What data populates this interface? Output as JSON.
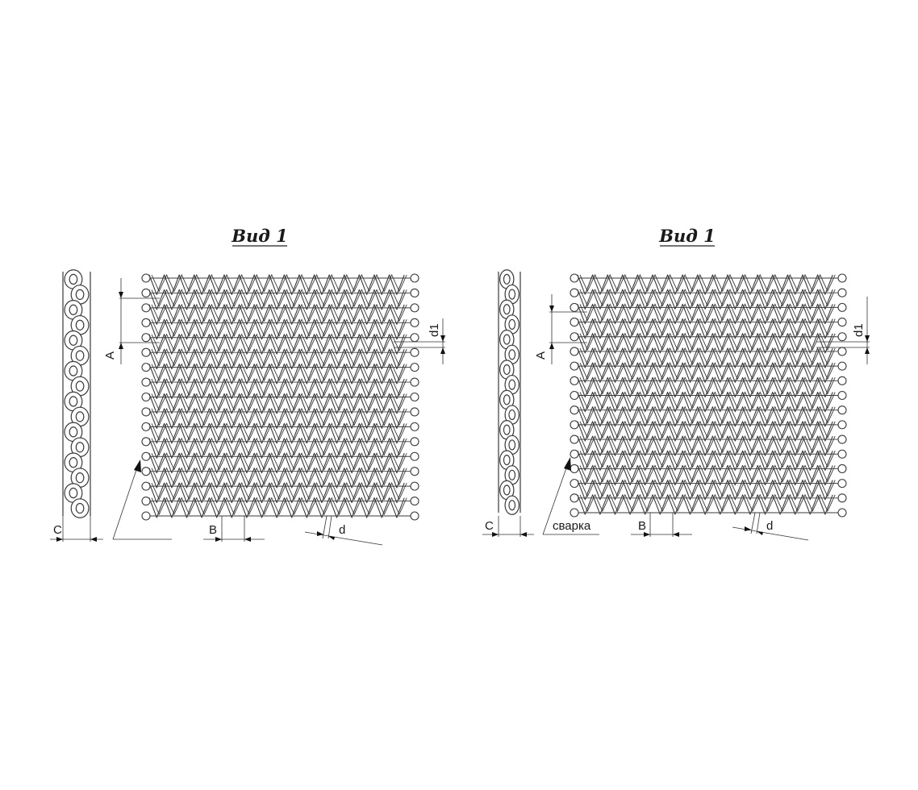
{
  "views": [
    {
      "title": "Вид 1",
      "labels": {
        "a": "A",
        "b": "B",
        "c": "C",
        "d": "d",
        "d1": "d1"
      },
      "weld_label": ""
    },
    {
      "title": "Вид 1",
      "labels": {
        "a": "A",
        "b": "B",
        "c": "C",
        "d": "d",
        "d1": "d1"
      },
      "weld_label": "сварка"
    }
  ],
  "colors": {
    "line": "#3a3a3a",
    "background": "#ffffff"
  }
}
